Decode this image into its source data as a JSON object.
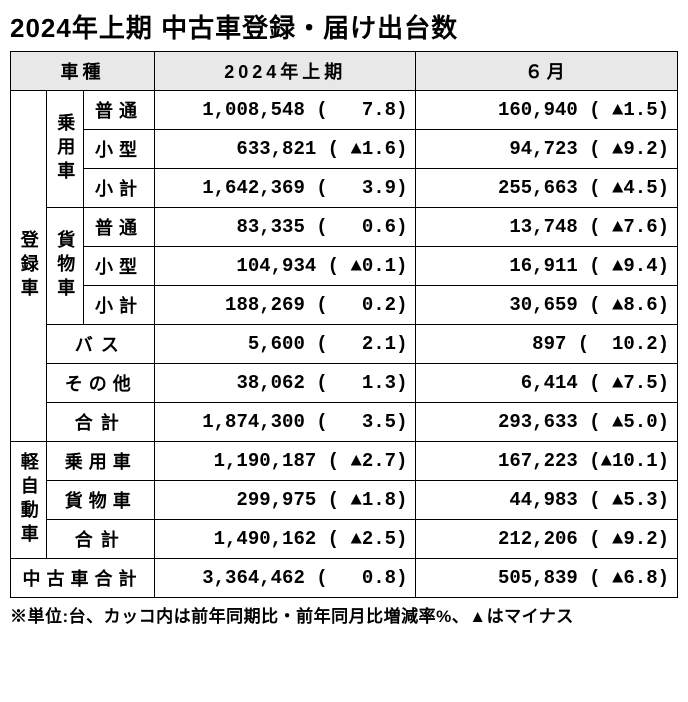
{
  "title": "2024年上期 中古車登録・届け出台数",
  "headers": {
    "type": "車種",
    "period1": "2024年上期",
    "period2": "６月"
  },
  "groups": {
    "registered": "登録車",
    "kei": "軽自動車",
    "passenger": "乗用車",
    "cargo": "貨物車"
  },
  "labels": {
    "normal": "普通",
    "small": "小型",
    "subtotal": "小計",
    "bus": "バス",
    "other": "その他",
    "total": "合計",
    "passenger": "乗用車",
    "cargo": "貨物車",
    "grand": "中古車合計"
  },
  "rows": {
    "r1": {
      "p1": "1,008,548 (   7.8)",
      "p2": "160,940 ( ▲1.5)"
    },
    "r2": {
      "p1": "  633,821 ( ▲1.6)",
      "p2": " 94,723 ( ▲9.2)"
    },
    "r3": {
      "p1": "1,642,369 (   3.9)",
      "p2": "255,663 ( ▲4.5)"
    },
    "r4": {
      "p1": "   83,335 (   0.6)",
      "p2": " 13,748 ( ▲7.6)"
    },
    "r5": {
      "p1": "  104,934 ( ▲0.1)",
      "p2": " 16,911 ( ▲9.4)"
    },
    "r6": {
      "p1": "  188,269 (   0.2)",
      "p2": " 30,659 ( ▲8.6)"
    },
    "r7": {
      "p1": "    5,600 (   2.1)",
      "p2": "    897 (  10.2)"
    },
    "r8": {
      "p1": "   38,062 (   1.3)",
      "p2": "  6,414 ( ▲7.5)"
    },
    "r9": {
      "p1": "1,874,300 (   3.5)",
      "p2": "293,633 ( ▲5.0)"
    },
    "r10": {
      "p1": "1,190,187 ( ▲2.7)",
      "p2": "167,223 (▲10.1)"
    },
    "r11": {
      "p1": "  299,975 ( ▲1.8)",
      "p2": " 44,983 ( ▲5.3)"
    },
    "r12": {
      "p1": "1,490,162 ( ▲2.5)",
      "p2": "212,206 ( ▲9.2)"
    },
    "r13": {
      "p1": "3,364,462 (   0.8)",
      "p2": "505,839 ( ▲6.8)"
    }
  },
  "footnote": "※単位:台、カッコ内は前年同期比・前年同月比増減率%、▲はマイナス"
}
